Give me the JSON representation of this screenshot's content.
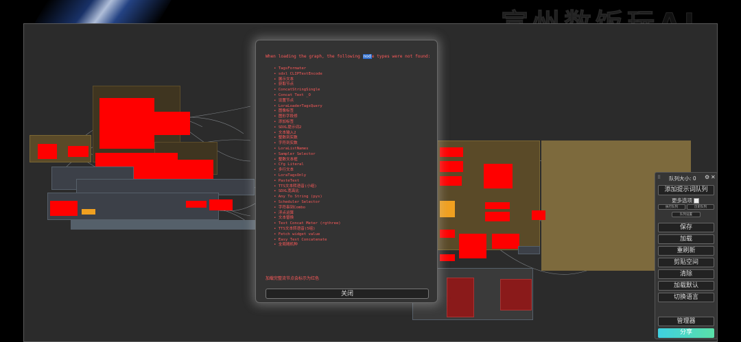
{
  "background_text": "宣州数饭玩AI",
  "dialog": {
    "message_before": "When loading the graph, the following ",
    "message_highlight": "nod",
    "message_after": "e types were not found:",
    "missing_nodes": [
      "TagsFormater",
      "sdxl CLIPTextEncode",
      "展示文本",
      "获取节点",
      "ConcatStringSingle",
      "Concat Text _O",
      "设置节点",
      "LoraLoaderTagsQuery",
      "图像标签",
      "图形字段修",
      "添加标签",
      "SDXL提示词2",
      "文本输入2",
      "整数到实数",
      "字符到实数",
      "LoraListNames",
      "Sampler Selector",
      "整数文本框",
      "Cfg Literal",
      "多行文本",
      "LoraTagsOnly",
      "PasteText",
      "TTS文本转语音(小组)",
      "SDXL宽高比",
      "Any To String (pys)",
      "Scheduler Selector",
      "字符串到Combo",
      "浮点运算",
      "文本替换",
      "Text Concat Meter (rgthree)",
      "TTS文本转语音(5组)",
      "Fetch widget value",
      "Easy Text Concatenate",
      "全局随机种"
    ],
    "footer_note": "加载完整流节点会标示为红色",
    "close_label": "关闭"
  },
  "queue_panel": {
    "drag_handle": "⠿",
    "queue_size_label": "队列大小: 0",
    "gear_icon": "⚙",
    "close_icon": "✕",
    "queue_prompt_label": "添加提示词队列",
    "extra_options_label": "更多选项",
    "view_queue_label": "执行队列",
    "view_history_label": "历史队列",
    "view_more_label": "队列设置",
    "save_label": "保存",
    "load_label": "加载",
    "refresh_label": "重刷新",
    "clipspace_label": "剪贴空间",
    "clear_label": "清除",
    "load_default_label": "加载默认",
    "switch_lang_label": "切换语言",
    "manager_label": "管理器",
    "share_label": "分享"
  },
  "colors": {
    "missing_node": "#ff0000",
    "dialog_text": "#ff5a5a",
    "highlight": "#2f6fd0",
    "node_tan": "#5a4a28",
    "share_gradient": "#3fd0e0"
  }
}
